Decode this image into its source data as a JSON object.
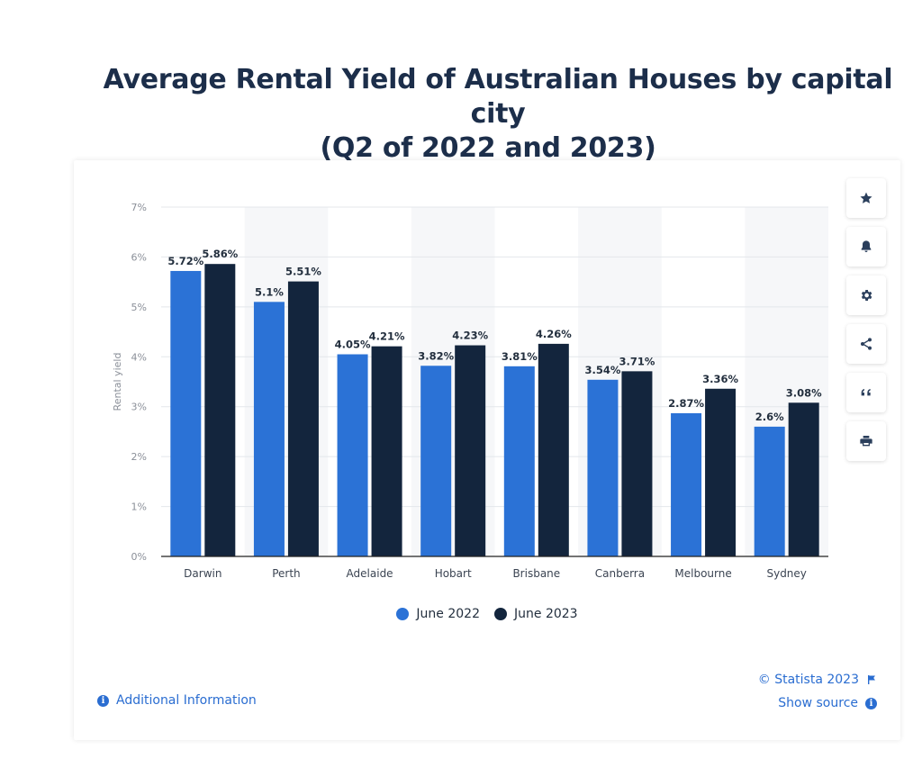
{
  "page": {
    "title_line1": "Average Rental Yield of Australian Houses by capital city",
    "title_line2": "(Q2 of 2022 and 2023)"
  },
  "chart_data": {
    "type": "bar",
    "categories": [
      "Darwin",
      "Perth",
      "Adelaide",
      "Hobart",
      "Brisbane",
      "Canberra",
      "Melbourne",
      "Sydney"
    ],
    "series": [
      {
        "name": "June 2022",
        "color": "#2b72d6",
        "values": [
          5.72,
          5.1,
          4.05,
          3.82,
          3.81,
          3.54,
          2.87,
          2.6
        ],
        "labels": [
          "5.72%",
          "5.1%",
          "4.05%",
          "3.82%",
          "3.81%",
          "3.54%",
          "2.87%",
          "2.6%"
        ]
      },
      {
        "name": "June 2023",
        "color": "#13253d",
        "values": [
          5.86,
          5.51,
          4.21,
          4.23,
          4.26,
          3.71,
          3.36,
          3.08
        ],
        "labels": [
          "5.86%",
          "5.51%",
          "4.21%",
          "4.23%",
          "4.26%",
          "3.71%",
          "3.36%",
          "3.08%"
        ]
      }
    ],
    "ylabel": "Rental yield",
    "xlabel": "",
    "ylim": [
      0,
      7
    ],
    "yticks": [
      "0%",
      "1%",
      "2%",
      "3%",
      "4%",
      "5%",
      "6%",
      "7%"
    ],
    "grid": true,
    "legend_position": "bottom-center"
  },
  "toolbar": {
    "items": [
      {
        "icon": "star-icon"
      },
      {
        "icon": "bell-icon"
      },
      {
        "icon": "gear-icon"
      },
      {
        "icon": "share-icon"
      },
      {
        "icon": "quote-icon"
      },
      {
        "icon": "print-icon"
      }
    ]
  },
  "legend": {
    "items": [
      {
        "label": "June 2022",
        "color": "#2b72d6"
      },
      {
        "label": "June 2023",
        "color": "#13253d"
      }
    ]
  },
  "footer": {
    "additional_info": "Additional Information",
    "copyright": "© Statista 2023",
    "show_source": "Show source"
  }
}
